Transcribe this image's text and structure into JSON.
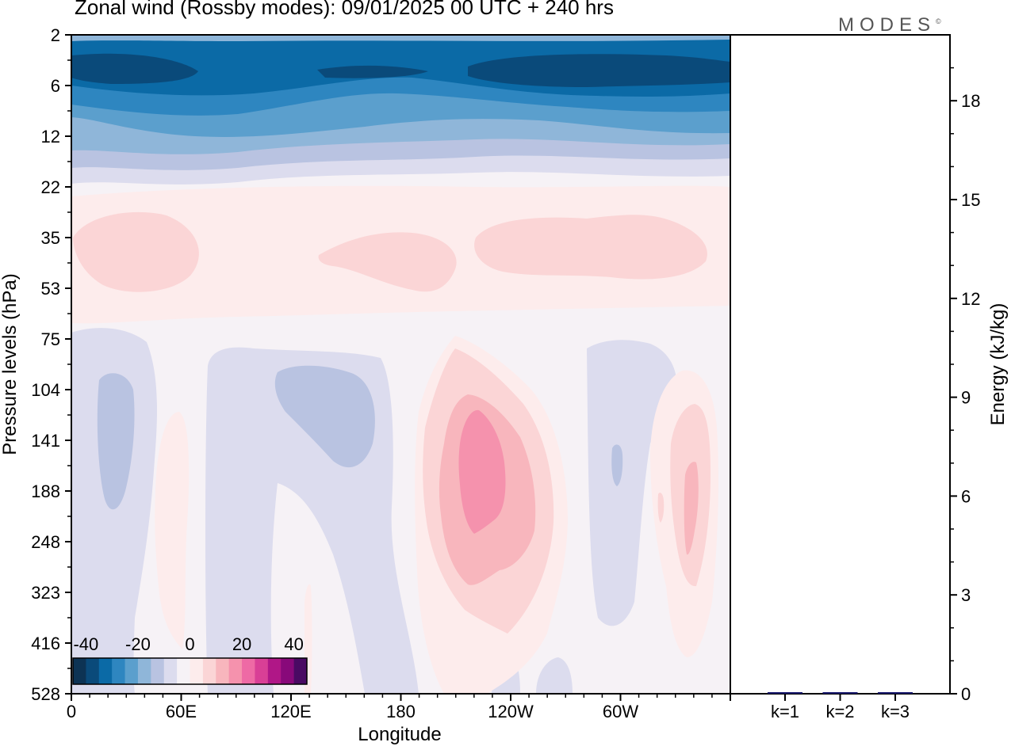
{
  "header": {
    "title": "Zonal wind (Rossby modes):  09/01/2025  00 UTC  + 240 hrs",
    "brand": "MODES",
    "brand_mark": "©"
  },
  "chart_data": [
    {
      "type": "heatmap",
      "title": "Zonal wind (Rossby modes):  09/01/2025  00 UTC  + 240 hrs",
      "xlabel": "Longitude",
      "ylabel": "Pressure levels (hPa)",
      "x_ticks": [
        "0",
        "60E",
        "120E",
        "180",
        "120W",
        "60W"
      ],
      "x_tick_values": [
        0,
        60,
        120,
        180,
        240,
        300
      ],
      "xlim": [
        0,
        360
      ],
      "y_ticks": [
        "2",
        "6",
        "12",
        "22",
        "35",
        "53",
        "75",
        "104",
        "141",
        "188",
        "248",
        "323",
        "416",
        "528"
      ],
      "y_scale": "log",
      "colorbar": {
        "labels": [
          "-40",
          "-20",
          "0",
          "20",
          "40"
        ],
        "colors": [
          "#0d3354",
          "#0a4a7a",
          "#0b6aa6",
          "#2e86c0",
          "#5b9fcd",
          "#8fb6d9",
          "#b9c3e1",
          "#dcdcee",
          "#f6f2f6",
          "#fdecec",
          "#fbd5d6",
          "#f8b6bd",
          "#f592ad",
          "#ee6aa5",
          "#d93f96",
          "#b01787",
          "#88097a",
          "#4a0a63"
        ],
        "range": [
          -45,
          45
        ],
        "placement": "bottom-left"
      },
      "fields": [
        {
          "lon": 0,
          "p": 6,
          "value": -35
        },
        {
          "lon": 50,
          "p": 6,
          "value": -40
        },
        {
          "lon": 170,
          "p": 6,
          "value": -30
        },
        {
          "lon": 230,
          "p": 6,
          "value": -38
        },
        {
          "lon": 320,
          "p": 6,
          "value": -40
        },
        {
          "lon": 180,
          "p": 12,
          "value": -15
        },
        {
          "lon": 300,
          "p": 12,
          "value": -18
        },
        {
          "lon": 30,
          "p": 35,
          "value": 5
        },
        {
          "lon": 180,
          "p": 35,
          "value": 5
        },
        {
          "lon": 280,
          "p": 35,
          "value": 5
        },
        {
          "lon": 20,
          "p": 141,
          "value": -5
        },
        {
          "lon": 135,
          "p": 120,
          "value": -5
        },
        {
          "lon": 230,
          "p": 150,
          "value": 18
        },
        {
          "lon": 338,
          "p": 188,
          "value": 10
        },
        {
          "lon": 60,
          "p": 230,
          "value": 2
        },
        {
          "lon": 290,
          "p": 160,
          "value": -3
        }
      ]
    },
    {
      "type": "bar",
      "ylabel": "Energy (kJ/kg)",
      "categories": [
        "k=1",
        "k=2",
        "k=3"
      ],
      "values": [
        0.03,
        0.02,
        0.01
      ],
      "y_ticks": [
        "0",
        "3",
        "6",
        "9",
        "12",
        "15",
        "18"
      ],
      "ylim": [
        0,
        20
      ],
      "bar_color": "#1a1a6e"
    }
  ]
}
